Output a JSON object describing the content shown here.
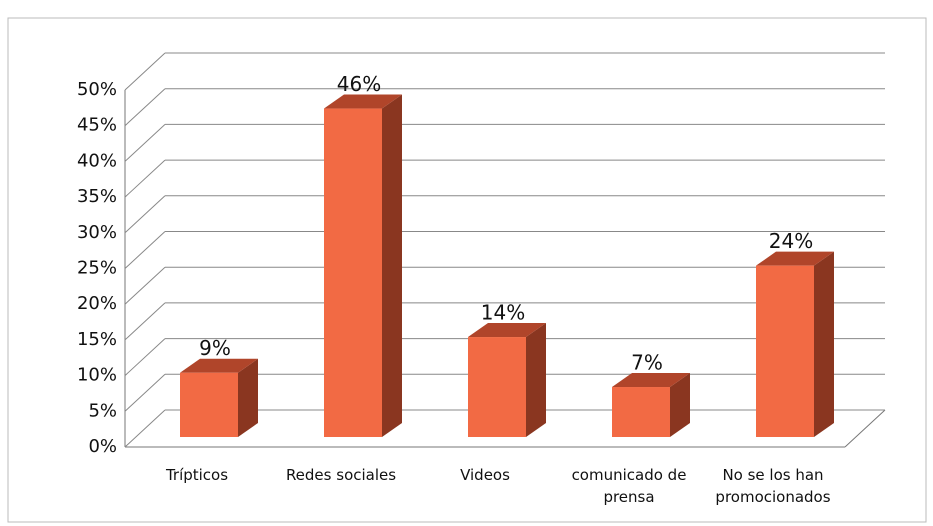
{
  "chart_data": {
    "type": "bar3d",
    "categories": [
      "Trípticos",
      "Redes sociales",
      "Videos",
      "comunicado de prensa",
      "No se los han promocionados"
    ],
    "values": [
      9,
      46,
      14,
      7,
      24
    ],
    "value_labels": [
      "9%",
      "46%",
      "14%",
      "7%",
      "24%"
    ],
    "colors": {
      "front": "#f26a44",
      "side": "#8a3620",
      "top": "#b0452a"
    },
    "ylim": [
      0,
      50
    ],
    "yticks": [
      {
        "value": 0,
        "label": "0%"
      },
      {
        "value": 5,
        "label": "5%"
      },
      {
        "value": 10,
        "label": "10%"
      },
      {
        "value": 15,
        "label": "15%"
      },
      {
        "value": 20,
        "label": "20%"
      },
      {
        "value": 25,
        "label": "25%"
      },
      {
        "value": 30,
        "label": "30%"
      },
      {
        "value": 35,
        "label": "35%"
      },
      {
        "value": 40,
        "label": "40%"
      },
      {
        "value": 45,
        "label": "45%"
      },
      {
        "value": 50,
        "label": "50%"
      }
    ],
    "grid": true
  }
}
